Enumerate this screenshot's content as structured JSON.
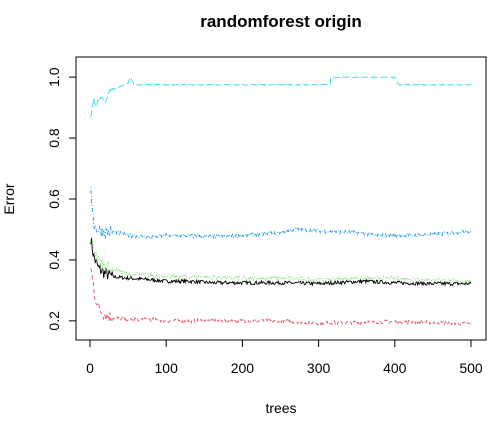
{
  "chart_data": {
    "type": "line",
    "title": "randomforest origin",
    "xlabel": "trees",
    "ylabel": "Error",
    "xlim": [
      0,
      500
    ],
    "ylim": [
      0.17,
      1.03
    ],
    "x_ticks": [
      0,
      100,
      200,
      300,
      400,
      500
    ],
    "y_ticks": [
      0.2,
      0.4,
      0.6,
      0.8,
      1.0
    ],
    "y_tick_labels": [
      "0.2",
      "0.4",
      "0.6",
      "0.8",
      "1.0"
    ],
    "grid": false,
    "legend": "none",
    "series": [
      {
        "color": "#000000",
        "dash": "solid",
        "points": [
          [
            1,
            0.47
          ],
          [
            3,
            0.44
          ],
          [
            5,
            0.41
          ],
          [
            8,
            0.39
          ],
          [
            12,
            0.37
          ],
          [
            20,
            0.355
          ],
          [
            30,
            0.345
          ],
          [
            50,
            0.34
          ],
          [
            80,
            0.335
          ],
          [
            100,
            0.33
          ],
          [
            130,
            0.33
          ],
          [
            160,
            0.325
          ],
          [
            200,
            0.325
          ],
          [
            250,
            0.325
          ],
          [
            300,
            0.322
          ],
          [
            320,
            0.325
          ],
          [
            360,
            0.33
          ],
          [
            400,
            0.325
          ],
          [
            450,
            0.322
          ],
          [
            500,
            0.322
          ]
        ]
      },
      {
        "color": "#DF536B",
        "dash": "dashed",
        "points": [
          [
            1,
            0.38
          ],
          [
            3,
            0.34
          ],
          [
            6,
            0.29
          ],
          [
            10,
            0.25
          ],
          [
            15,
            0.23
          ],
          [
            20,
            0.22
          ],
          [
            30,
            0.21
          ],
          [
            50,
            0.205
          ],
          [
            80,
            0.205
          ],
          [
            100,
            0.2
          ],
          [
            150,
            0.2
          ],
          [
            200,
            0.2
          ],
          [
            250,
            0.2
          ],
          [
            300,
            0.193
          ],
          [
            350,
            0.195
          ],
          [
            400,
            0.198
          ],
          [
            450,
            0.195
          ],
          [
            500,
            0.19
          ]
        ]
      },
      {
        "color": "#61D04F",
        "dash": "dotted",
        "points": [
          [
            1,
            0.46
          ],
          [
            3,
            0.45
          ],
          [
            6,
            0.43
          ],
          [
            10,
            0.4
          ],
          [
            15,
            0.39
          ],
          [
            20,
            0.38
          ],
          [
            30,
            0.37
          ],
          [
            50,
            0.355
          ],
          [
            80,
            0.35
          ],
          [
            100,
            0.345
          ],
          [
            150,
            0.345
          ],
          [
            200,
            0.34
          ],
          [
            250,
            0.34
          ],
          [
            300,
            0.335
          ],
          [
            350,
            0.34
          ],
          [
            400,
            0.34
          ],
          [
            450,
            0.335
          ],
          [
            500,
            0.33
          ]
        ]
      },
      {
        "color": "#2297E6",
        "dash": "dotdash",
        "points": [
          [
            1,
            0.62
          ],
          [
            3,
            0.58
          ],
          [
            5,
            0.52
          ],
          [
            8,
            0.5
          ],
          [
            12,
            0.5
          ],
          [
            20,
            0.49
          ],
          [
            30,
            0.495
          ],
          [
            50,
            0.48
          ],
          [
            80,
            0.475
          ],
          [
            100,
            0.48
          ],
          [
            130,
            0.48
          ],
          [
            150,
            0.475
          ],
          [
            200,
            0.48
          ],
          [
            250,
            0.49
          ],
          [
            270,
            0.5
          ],
          [
            300,
            0.495
          ],
          [
            350,
            0.49
          ],
          [
            380,
            0.48
          ],
          [
            420,
            0.48
          ],
          [
            460,
            0.485
          ],
          [
            500,
            0.495
          ]
        ]
      },
      {
        "color": "#28E2E5",
        "dash": "longdash",
        "points": [
          [
            1,
            0.87
          ],
          [
            3,
            0.9
          ],
          [
            5,
            0.93
          ],
          [
            8,
            0.9
          ],
          [
            10,
            0.92
          ],
          [
            15,
            0.93
          ],
          [
            20,
            0.92
          ],
          [
            25,
            0.95
          ],
          [
            30,
            0.96
          ],
          [
            40,
            0.97
          ],
          [
            50,
            0.98
          ],
          [
            53,
            1.0
          ],
          [
            58,
            0.975
          ],
          [
            100,
            0.975
          ],
          [
            200,
            0.975
          ],
          [
            300,
            0.975
          ],
          [
            315,
            0.975
          ],
          [
            316,
            1.0
          ],
          [
            400,
            1.0
          ],
          [
            405,
            0.975
          ],
          [
            450,
            0.975
          ],
          [
            500,
            0.975
          ]
        ]
      }
    ]
  }
}
